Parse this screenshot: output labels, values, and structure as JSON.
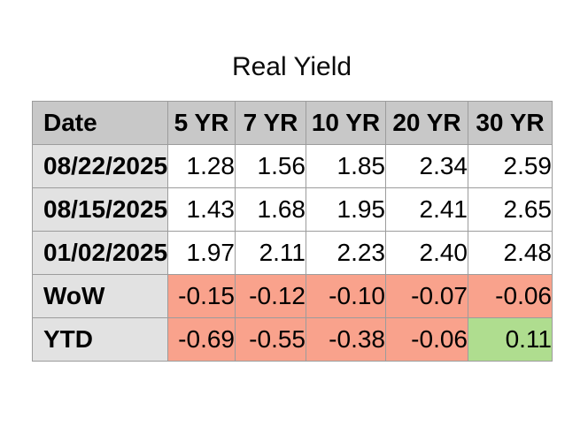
{
  "title": "Real Yield",
  "colors": {
    "header_bg": "#c8c8c8",
    "label_bg": "#e2e2e2",
    "cell_bg": "#ffffff",
    "negative_bg": "#f9a28c",
    "positive_bg": "#afdd8f",
    "border": "#9c9c9c"
  },
  "table": {
    "columns": [
      "Date",
      "5 YR",
      "7 YR",
      "10 YR",
      "20 YR",
      "30 YR"
    ],
    "rows": [
      {
        "label": "08/22/2025",
        "values": [
          "1.28",
          "1.56",
          "1.85",
          "2.34",
          "2.59"
        ],
        "cell_colors": [
          "white",
          "white",
          "white",
          "white",
          "white"
        ]
      },
      {
        "label": "08/15/2025",
        "values": [
          "1.43",
          "1.68",
          "1.95",
          "2.41",
          "2.65"
        ],
        "cell_colors": [
          "white",
          "white",
          "white",
          "white",
          "white"
        ]
      },
      {
        "label": "01/02/2025",
        "values": [
          "1.97",
          "2.11",
          "2.23",
          "2.40",
          "2.48"
        ],
        "cell_colors": [
          "white",
          "white",
          "white",
          "white",
          "white"
        ]
      },
      {
        "label": "WoW",
        "values": [
          "-0.15",
          "-0.12",
          "-0.10",
          "-0.07",
          "-0.06"
        ],
        "cell_colors": [
          "negative",
          "negative",
          "negative",
          "negative",
          "negative"
        ]
      },
      {
        "label": "YTD",
        "values": [
          "-0.69",
          "-0.55",
          "-0.38",
          "-0.06",
          "0.11"
        ],
        "cell_colors": [
          "negative",
          "negative",
          "negative",
          "negative",
          "positive"
        ]
      }
    ]
  },
  "chart_data": {
    "type": "table",
    "title": "Real Yield",
    "columns": [
      "Date",
      "5 YR",
      "7 YR",
      "10 YR",
      "20 YR",
      "30 YR"
    ],
    "rows": [
      [
        "08/22/2025",
        1.28,
        1.56,
        1.85,
        2.34,
        2.59
      ],
      [
        "08/15/2025",
        1.43,
        1.68,
        1.95,
        2.41,
        2.65
      ],
      [
        "01/02/2025",
        1.97,
        2.11,
        2.23,
        2.4,
        2.48
      ],
      [
        "WoW",
        -0.15,
        -0.12,
        -0.1,
        -0.07,
        -0.06
      ],
      [
        "YTD",
        -0.69,
        -0.55,
        -0.38,
        -0.06,
        0.11
      ]
    ],
    "layout_hints": {
      "negative_change_cells_highlight": "salmon",
      "positive_change_cells_highlight": "green",
      "header_row_highlight": "gray",
      "label_column_highlight": "light-gray"
    }
  }
}
